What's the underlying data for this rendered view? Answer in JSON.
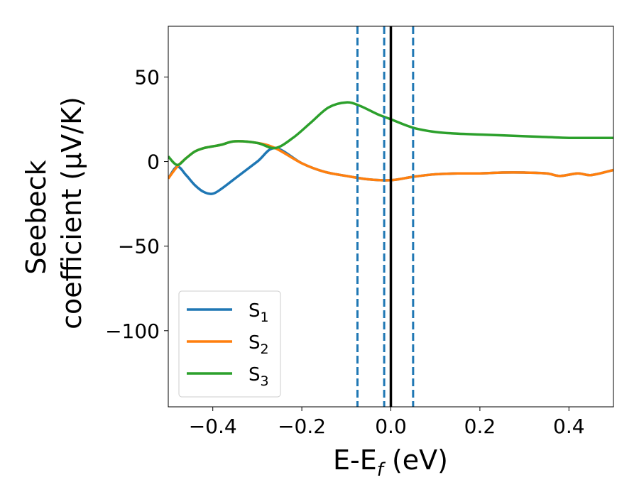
{
  "chart_data": {
    "type": "line",
    "xlabel_main": "E-E",
    "xlabel_sub": "f",
    "xlabel_unit": " (eV)",
    "ylabel_line1": "Seebeck",
    "ylabel_line2": "coefficient  (μV/K)",
    "xlim": [
      -0.5,
      0.5
    ],
    "ylim": [
      -145,
      80
    ],
    "x_ticks": [
      -0.4,
      -0.2,
      0.0,
      0.2,
      0.4
    ],
    "x_tick_labels": [
      "−0.4",
      "−0.2",
      "0.0",
      "0.2",
      "0.4"
    ],
    "y_ticks": [
      50,
      0,
      -50,
      -100
    ],
    "y_tick_labels": [
      "50",
      "0",
      "−50",
      "−100"
    ],
    "grid": false,
    "legend_position": "lower-left",
    "series": [
      {
        "name": "S",
        "sub": "1",
        "color": "#1f77b4",
        "x": [
          -0.5,
          -0.48,
          -0.46,
          -0.44,
          -0.42,
          -0.4,
          -0.38,
          -0.35,
          -0.3,
          -0.26,
          -0.2,
          -0.15,
          -0.1,
          -0.05,
          0.0,
          0.05,
          0.1,
          0.15,
          0.2,
          0.25,
          0.3,
          0.35,
          0.38,
          0.42,
          0.45,
          0.5
        ],
        "y": [
          -10,
          -3,
          -8,
          -14,
          -18,
          -19,
          -16,
          -10,
          0,
          8,
          -1,
          -6,
          -8.5,
          -10.5,
          -11,
          -9,
          -7.5,
          -7,
          -7,
          -6.5,
          -6.5,
          -7,
          -8.5,
          -7,
          -8,
          -5
        ]
      },
      {
        "name": "S",
        "sub": "2",
        "color": "#ff7f0e",
        "x": [
          -0.5,
          -0.48,
          -0.46,
          -0.44,
          -0.42,
          -0.4,
          -0.38,
          -0.35,
          -0.3,
          -0.26,
          -0.2,
          -0.15,
          -0.1,
          -0.05,
          0.0,
          0.05,
          0.1,
          0.15,
          0.2,
          0.25,
          0.3,
          0.35,
          0.38,
          0.42,
          0.45,
          0.5
        ],
        "y": [
          -10,
          -3,
          2,
          6,
          8,
          9,
          10,
          12,
          11,
          8,
          -1,
          -6,
          -8.5,
          -10.5,
          -11,
          -9,
          -7.5,
          -7,
          -7,
          -6.5,
          -6.5,
          -7,
          -8.5,
          -7,
          -8,
          -5
        ]
      },
      {
        "name": "S",
        "sub": "3",
        "color": "#2ca02c",
        "x": [
          -0.5,
          -0.48,
          -0.46,
          -0.44,
          -0.42,
          -0.4,
          -0.38,
          -0.35,
          -0.3,
          -0.26,
          -0.22,
          -0.18,
          -0.14,
          -0.1,
          -0.07,
          -0.03,
          0.0,
          0.05,
          0.1,
          0.15,
          0.2,
          0.25,
          0.3,
          0.35,
          0.4,
          0.45,
          0.5
        ],
        "y": [
          3,
          -2,
          2,
          6,
          8,
          9,
          10,
          12,
          11,
          8,
          14,
          23,
          32,
          35,
          33,
          28,
          25,
          20,
          17.5,
          16.5,
          16,
          15.5,
          15,
          14.5,
          14,
          14,
          14
        ]
      }
    ],
    "vlines": [
      {
        "x": -0.075,
        "style": "dashed",
        "color": "#1f77b4"
      },
      {
        "x": -0.015,
        "style": "dashed",
        "color": "#1f77b4"
      },
      {
        "x": 0.05,
        "style": "dashed",
        "color": "#1f77b4"
      },
      {
        "x": 0.0,
        "style": "solid",
        "color": "#000000"
      }
    ]
  }
}
